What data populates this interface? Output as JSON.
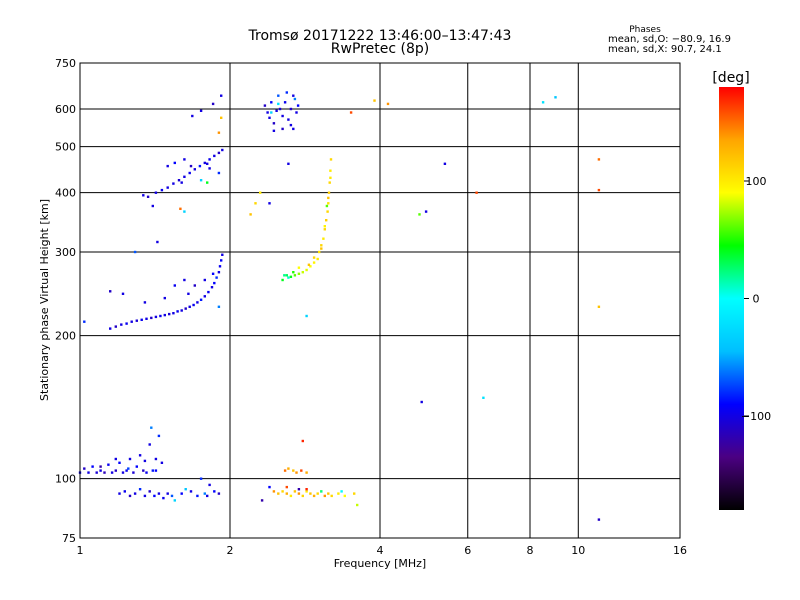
{
  "chart_data": {
    "type": "scatter",
    "title": "Tromsø 20171222 13:46:00–13:47:43",
    "subtitle": "RwPretec (8p)",
    "xlabel": "Frequency [MHz]",
    "ylabel": "Stationary phase Virtual Height [km]",
    "x_scale": "log",
    "y_scale": "log",
    "xlim": [
      1,
      16
    ],
    "ylim": [
      75,
      750
    ],
    "x_ticks": [
      1,
      2,
      4,
      6,
      8,
      10,
      16
    ],
    "y_ticks": [
      75,
      100,
      200,
      300,
      400,
      500,
      600,
      750
    ],
    "grid": true,
    "phase_stats": {
      "heading": "Phases",
      "line_o": "mean, sd,O: −80.9, 16.9",
      "line_x": "mean, sd,X:  90.7, 24.1"
    },
    "colorbar": {
      "label": "[deg]",
      "range": [
        -180,
        180
      ],
      "ticks": [
        100,
        0,
        -100
      ],
      "tick_labels": [
        "100",
        "0",
        "−100"
      ],
      "colors": [
        "#000000",
        "#4b0082",
        "#0000ff",
        "#00bfff",
        "#00ffff",
        "#00ff00",
        "#ffff00",
        "#ffa500",
        "#ff0000"
      ]
    },
    "series": [
      {
        "points": [
          [
            1.0,
            103,
            -95
          ],
          [
            1.02,
            105,
            -110
          ],
          [
            1.04,
            103,
            -100
          ],
          [
            1.06,
            106,
            -90
          ],
          [
            1.08,
            103,
            -105
          ],
          [
            1.1,
            104,
            -100
          ],
          [
            1.12,
            103,
            -115
          ],
          [
            1.14,
            107,
            -95
          ],
          [
            1.16,
            103,
            -100
          ],
          [
            1.18,
            104,
            -110
          ],
          [
            1.2,
            108,
            -90
          ],
          [
            1.22,
            103,
            -100
          ],
          [
            1.24,
            104,
            -95
          ],
          [
            1.26,
            110,
            -100
          ],
          [
            1.28,
            103,
            -105
          ],
          [
            1.3,
            106,
            -90
          ],
          [
            1.32,
            112,
            -100
          ],
          [
            1.34,
            104,
            -110
          ],
          [
            1.36,
            103,
            -95
          ],
          [
            1.38,
            118,
            -100
          ],
          [
            1.4,
            104,
            -85
          ],
          [
            1.42,
            110,
            -100
          ],
          [
            1.44,
            123,
            -80
          ],
          [
            1.46,
            108,
            -100
          ],
          [
            1.1,
            106,
            -120
          ],
          [
            1.18,
            110,
            -100
          ],
          [
            1.25,
            105,
            -75
          ],
          [
            1.35,
            109,
            -100
          ],
          [
            1.42,
            104,
            -90
          ],
          [
            1.39,
            128,
            -60
          ]
        ]
      },
      {
        "points": [
          [
            1.2,
            93,
            -100
          ],
          [
            1.23,
            94,
            -95
          ],
          [
            1.26,
            92,
            -110
          ],
          [
            1.29,
            93,
            -100
          ],
          [
            1.32,
            95,
            -80
          ],
          [
            1.35,
            92,
            -100
          ],
          [
            1.38,
            94,
            -110
          ],
          [
            1.41,
            92,
            -90
          ],
          [
            1.44,
            93,
            -100
          ],
          [
            1.47,
            91,
            -95
          ],
          [
            1.5,
            93,
            -100
          ],
          [
            1.53,
            92,
            -70
          ],
          [
            1.6,
            93,
            -90
          ],
          [
            1.67,
            94,
            -100
          ],
          [
            1.72,
            92,
            -85
          ],
          [
            1.78,
            93,
            -60
          ],
          [
            1.8,
            92,
            -100
          ],
          [
            1.86,
            94,
            -90
          ],
          [
            1.9,
            93,
            -110
          ],
          [
            1.55,
            90,
            -30
          ],
          [
            1.75,
            100,
            -80
          ],
          [
            1.63,
            95,
            -40
          ],
          [
            1.82,
            97,
            -100
          ]
        ]
      },
      {
        "points": [
          [
            1.15,
            207,
            -100
          ],
          [
            1.18,
            209,
            -110
          ],
          [
            1.21,
            211,
            -100
          ],
          [
            1.24,
            212,
            -95
          ],
          [
            1.27,
            214,
            -100
          ],
          [
            1.3,
            215,
            -105
          ],
          [
            1.33,
            216,
            -95
          ],
          [
            1.36,
            217,
            -100
          ],
          [
            1.39,
            218,
            -110
          ],
          [
            1.42,
            219,
            -100
          ],
          [
            1.45,
            220,
            -95
          ],
          [
            1.48,
            221,
            -100
          ],
          [
            1.51,
            222,
            -105
          ],
          [
            1.54,
            223,
            -100
          ],
          [
            1.57,
            225,
            -95
          ],
          [
            1.6,
            226,
            -100
          ],
          [
            1.63,
            228,
            -110
          ],
          [
            1.66,
            230,
            -100
          ],
          [
            1.69,
            232,
            -95
          ],
          [
            1.72,
            235,
            -100
          ],
          [
            1.75,
            238,
            -85
          ],
          [
            1.78,
            242,
            -100
          ],
          [
            1.81,
            247,
            -95
          ],
          [
            1.84,
            253,
            -100
          ],
          [
            1.86,
            258,
            -90
          ],
          [
            1.88,
            265,
            -80
          ],
          [
            1.9,
            272,
            -100
          ],
          [
            1.91,
            280,
            -95
          ],
          [
            1.92,
            288,
            -90
          ],
          [
            1.93,
            296,
            -100
          ],
          [
            1.22,
            245,
            -100
          ],
          [
            1.15,
            248,
            -110
          ],
          [
            1.48,
            240,
            -100
          ],
          [
            1.55,
            255,
            -95
          ],
          [
            1.62,
            262,
            -100
          ],
          [
            1.7,
            255,
            -110
          ],
          [
            1.35,
            235,
            -100
          ],
          [
            1.85,
            270,
            -90
          ],
          [
            1.29,
            300,
            -70
          ],
          [
            1.43,
            315,
            -100
          ],
          [
            1.02,
            214,
            -80
          ],
          [
            1.65,
            245,
            -100
          ],
          [
            1.78,
            262,
            -100
          ],
          [
            1.9,
            230,
            -60
          ]
        ]
      },
      {
        "points": [
          [
            1.34,
            395,
            -100
          ],
          [
            1.37,
            392,
            -110
          ],
          [
            1.42,
            400,
            -100
          ],
          [
            1.46,
            405,
            -95
          ],
          [
            1.5,
            410,
            -100
          ],
          [
            1.54,
            418,
            -100
          ],
          [
            1.58,
            425,
            -105
          ],
          [
            1.62,
            432,
            -100
          ],
          [
            1.66,
            440,
            -95
          ],
          [
            1.7,
            448,
            -100
          ],
          [
            1.74,
            455,
            -85
          ],
          [
            1.78,
            462,
            -100
          ],
          [
            1.82,
            470,
            -95
          ],
          [
            1.86,
            478,
            -100
          ],
          [
            1.9,
            485,
            -110
          ],
          [
            1.93,
            492,
            -100
          ],
          [
            1.5,
            455,
            -100
          ],
          [
            1.55,
            462,
            -90
          ],
          [
            1.62,
            470,
            -100
          ],
          [
            1.67,
            455,
            -110
          ],
          [
            1.75,
            425,
            -30
          ],
          [
            1.8,
            420,
            40
          ],
          [
            1.82,
            450,
            -100
          ],
          [
            1.6,
            420,
            -100
          ],
          [
            1.9,
            440,
            -80
          ],
          [
            1.59,
            370,
            150
          ],
          [
            1.62,
            365,
            -30
          ],
          [
            1.4,
            375,
            -100
          ]
        ]
      },
      {
        "points": [
          [
            1.68,
            580,
            -100
          ],
          [
            1.75,
            595,
            -100
          ],
          [
            1.85,
            615,
            -110
          ],
          [
            1.92,
            640,
            -100
          ],
          [
            1.92,
            575,
            120
          ],
          [
            1.9,
            535,
            140
          ],
          [
            1.8,
            460,
            -100
          ]
        ]
      },
      {
        "points": [
          [
            2.35,
            610,
            -110
          ],
          [
            2.38,
            590,
            -100
          ],
          [
            2.4,
            575,
            -100
          ],
          [
            2.42,
            620,
            -90
          ],
          [
            2.45,
            560,
            -110
          ],
          [
            2.48,
            595,
            -100
          ],
          [
            2.5,
            640,
            -70
          ],
          [
            2.52,
            600,
            -105
          ],
          [
            2.55,
            580,
            -100
          ],
          [
            2.58,
            620,
            -95
          ],
          [
            2.6,
            650,
            -80
          ],
          [
            2.62,
            570,
            -100
          ],
          [
            2.65,
            600,
            -110
          ],
          [
            2.68,
            545,
            -100
          ],
          [
            2.7,
            630,
            -60
          ],
          [
            2.72,
            590,
            -100
          ],
          [
            2.74,
            610,
            -90
          ],
          [
            2.45,
            540,
            -100
          ],
          [
            2.55,
            545,
            -110
          ],
          [
            2.65,
            555,
            -100
          ],
          [
            2.42,
            590,
            -30
          ],
          [
            2.68,
            640,
            -100
          ],
          [
            2.5,
            615,
            -20
          ]
        ]
      },
      {
        "points": [
          [
            2.6,
            268,
            30
          ],
          [
            2.65,
            266,
            40
          ],
          [
            2.7,
            268,
            60
          ],
          [
            2.75,
            270,
            70
          ],
          [
            2.8,
            272,
            80
          ],
          [
            2.85,
            275,
            85
          ],
          [
            2.9,
            280,
            90
          ],
          [
            2.95,
            285,
            95
          ],
          [
            3.0,
            290,
            100
          ],
          [
            3.02,
            300,
            105
          ],
          [
            3.05,
            310,
            110
          ],
          [
            3.08,
            320,
            100
          ],
          [
            3.1,
            335,
            110
          ],
          [
            3.12,
            350,
            115
          ],
          [
            3.14,
            365,
            110
          ],
          [
            3.15,
            380,
            105
          ],
          [
            3.16,
            400,
            115
          ],
          [
            3.17,
            420,
            110
          ],
          [
            3.18,
            445,
            100
          ],
          [
            3.19,
            470,
            110
          ],
          [
            2.62,
            265,
            10
          ],
          [
            2.68,
            272,
            50
          ],
          [
            2.75,
            278,
            90
          ],
          [
            2.88,
            282,
            120
          ],
          [
            2.95,
            292,
            110
          ],
          [
            3.05,
            305,
            120
          ],
          [
            3.1,
            340,
            95
          ],
          [
            3.15,
            390,
            120
          ],
          [
            3.18,
            430,
            100
          ],
          [
            2.57,
            268,
            20
          ],
          [
            2.55,
            262,
            40
          ],
          [
            3.13,
            375,
            60
          ]
        ]
      },
      {
        "points": [
          [
            2.5,
            93,
            120
          ],
          [
            2.55,
            94,
            110
          ],
          [
            2.6,
            93,
            130
          ],
          [
            2.65,
            92,
            100
          ],
          [
            2.7,
            94,
            120
          ],
          [
            2.75,
            93,
            140
          ],
          [
            2.8,
            92,
            110
          ],
          [
            2.85,
            94,
            100
          ],
          [
            2.9,
            93,
            120
          ],
          [
            2.95,
            92,
            130
          ],
          [
            3.0,
            93,
            110
          ],
          [
            3.05,
            94,
            100
          ],
          [
            3.1,
            92,
            140
          ],
          [
            3.15,
            93,
            120
          ],
          [
            3.2,
            92,
            110
          ],
          [
            3.3,
            93,
            100
          ],
          [
            3.4,
            92,
            90
          ],
          [
            3.55,
            93,
            110
          ],
          [
            3.6,
            88,
            80
          ],
          [
            2.6,
            96,
            160
          ],
          [
            2.75,
            95,
            -120
          ],
          [
            2.85,
            95,
            170
          ],
          [
            3.05,
            94,
            20
          ],
          [
            3.35,
            94,
            0
          ],
          [
            2.45,
            94,
            140
          ]
        ]
      },
      {
        "points": [
          [
            2.58,
            104,
            150
          ],
          [
            2.62,
            105,
            130
          ],
          [
            2.68,
            104,
            120
          ],
          [
            2.72,
            103,
            140
          ],
          [
            2.78,
            104,
            160
          ],
          [
            2.85,
            103,
            130
          ],
          [
            2.8,
            120,
            170
          ],
          [
            2.4,
            96,
            -90
          ],
          [
            2.32,
            90,
            -120
          ],
          [
            2.85,
            220,
            -30
          ]
        ]
      },
      {
        "points": [
          [
            2.2,
            360,
            120
          ],
          [
            2.25,
            380,
            110
          ],
          [
            2.3,
            400,
            100
          ],
          [
            2.4,
            380,
            -100
          ],
          [
            2.62,
            460,
            -100
          ],
          [
            3.5,
            590,
            160
          ],
          [
            3.9,
            625,
            120
          ],
          [
            4.15,
            615,
            140
          ],
          [
            4.8,
            360,
            60
          ],
          [
            4.95,
            365,
            -100
          ],
          [
            5.4,
            460,
            -100
          ],
          [
            4.85,
            145,
            -100
          ],
          [
            6.45,
            148,
            -20
          ],
          [
            8.5,
            620,
            -20
          ],
          [
            9.0,
            635,
            -40
          ],
          [
            11.0,
            470,
            150
          ],
          [
            11.0,
            405,
            160
          ],
          [
            11.0,
            230,
            120
          ],
          [
            11.0,
            82,
            -110
          ],
          [
            6.25,
            400,
            160
          ]
        ]
      }
    ]
  }
}
